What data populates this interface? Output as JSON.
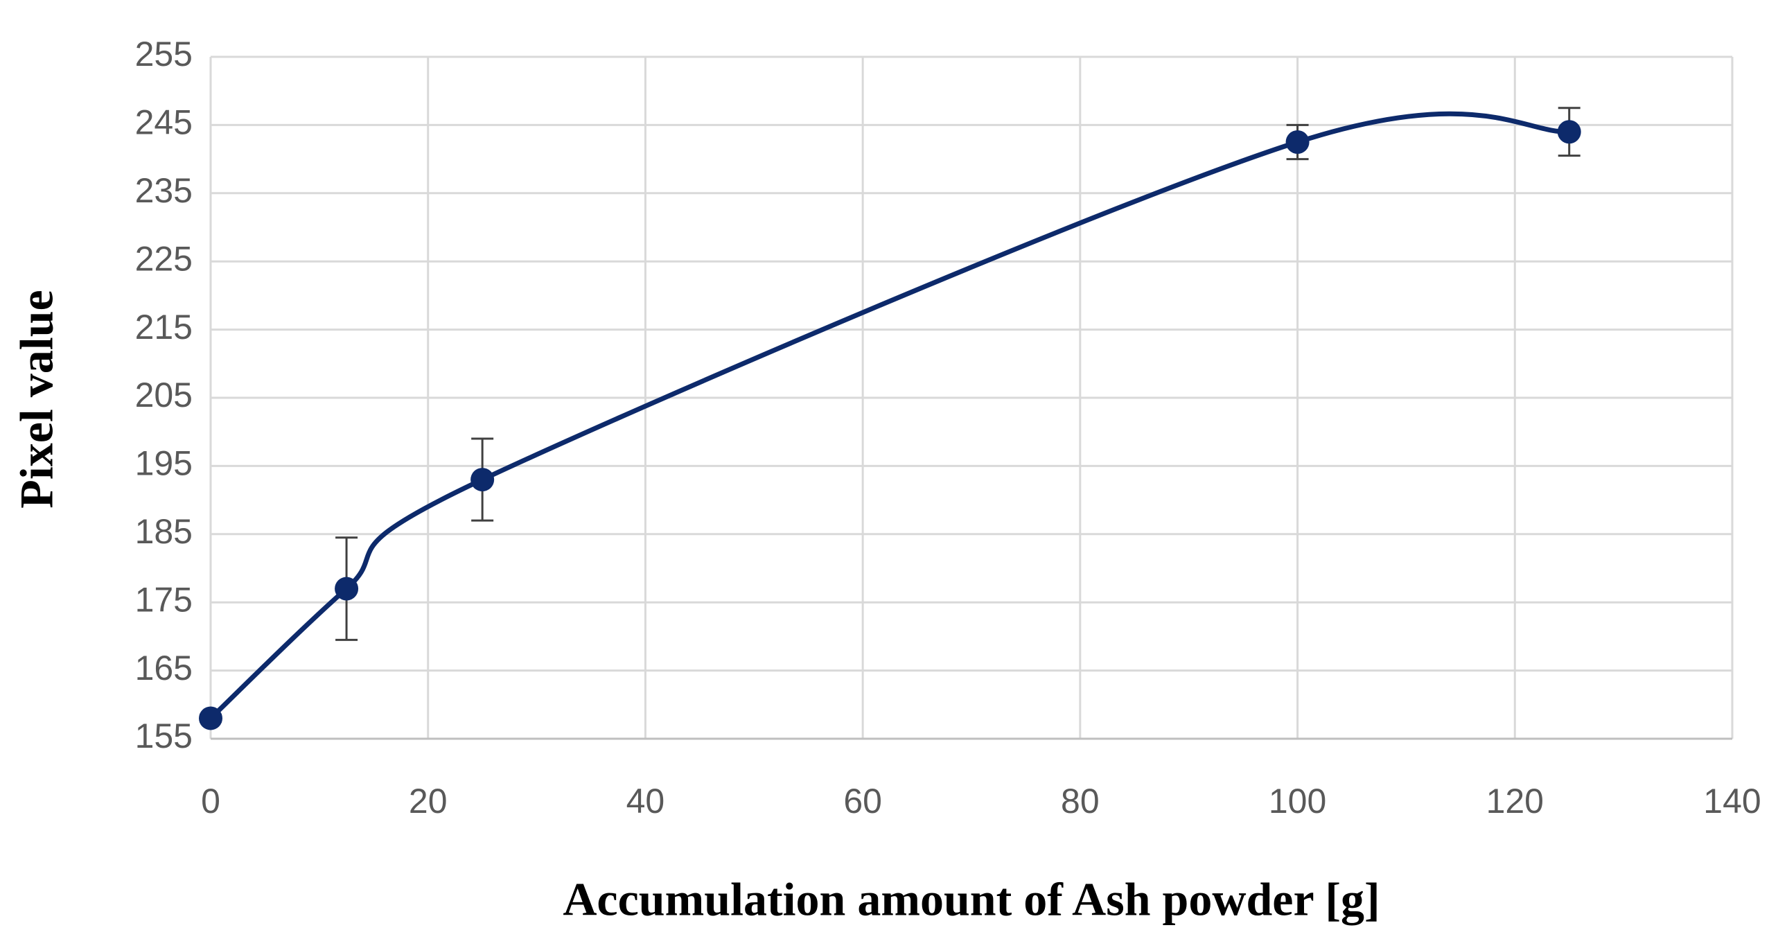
{
  "chart_data": {
    "type": "scatter",
    "x_label": "Accumulation amount of Ash powder [g]",
    "y_label": "Pixel value",
    "x": [
      0,
      12.5,
      25,
      100,
      125
    ],
    "values": [
      158,
      177,
      193,
      242.5,
      244
    ],
    "errors": [
      0.5,
      7.5,
      6,
      2.5,
      3.5
    ],
    "color": "#0d2a6b",
    "smooth": true,
    "grid": true,
    "xlim": [
      0,
      140
    ],
    "xticks": [
      0,
      20,
      40,
      60,
      80,
      100,
      120,
      140
    ],
    "ylim": [
      155,
      255
    ],
    "yticks": [
      155,
      165,
      175,
      185,
      195,
      205,
      215,
      225,
      235,
      245,
      255
    ]
  }
}
